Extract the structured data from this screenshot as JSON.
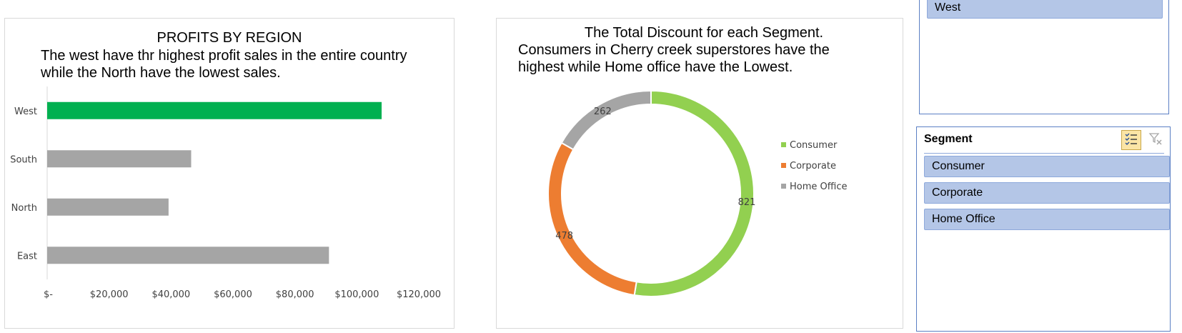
{
  "chart_data": [
    {
      "type": "bar",
      "title": "PROFITS BY REGION",
      "subtitle": "The west have thr highest profit sales in the entire country while the North have the lowest sales.",
      "orientation": "horizontal",
      "categories": [
        "West",
        "South",
        "North",
        "East"
      ],
      "values": [
        108000,
        46500,
        39200,
        91000
      ],
      "bar_colors": [
        "#00b050",
        "#a5a5a5",
        "#a5a5a5",
        "#a5a5a5"
      ],
      "xlim": [
        0,
        120000
      ],
      "xticks": [
        0,
        20000,
        40000,
        60000,
        80000,
        100000,
        120000
      ],
      "xtick_labels": [
        "$-",
        "$20,000",
        "$40,000",
        "$60,000",
        "$80,000",
        "$100,000",
        "$120,000"
      ],
      "grid": false,
      "legend": "none"
    },
    {
      "type": "pie",
      "variant": "donut",
      "title": "The Total Discount for each Segment.",
      "subtitle_lines": [
        "Consumers in Cherry creek superstores have the",
        "highest while Home office have the Lowest."
      ],
      "labels": [
        "Consumer",
        "Corporate",
        "Home Office"
      ],
      "values": [
        821,
        478,
        262
      ],
      "colors": [
        "#92d050",
        "#ed7d31",
        "#a5a5a5"
      ],
      "legend": "right"
    }
  ],
  "slicers": {
    "region": {
      "visible_items": [
        {
          "label": "West"
        }
      ]
    },
    "segment": {
      "header": "Segment",
      "items": [
        {
          "label": "Consumer"
        },
        {
          "label": "Corporate"
        },
        {
          "label": "Home Office"
        }
      ],
      "multi_select_icon": "multi-select-checklist-icon",
      "clear_filter_icon": "clear-filter-icon"
    }
  }
}
